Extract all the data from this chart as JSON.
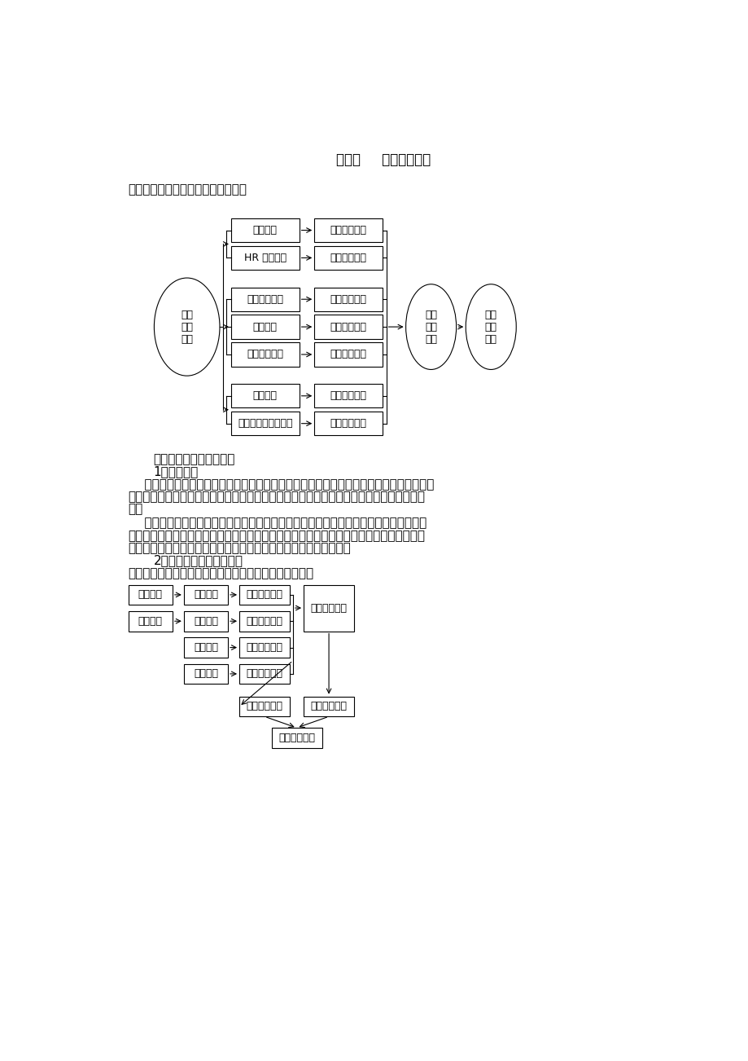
{
  "title": "第二章     培训需求调研",
  "section1_heading": "一、培训需求调研流程图，见下图：",
  "section2_heading": "二、培训需求的路径分析",
  "subsection1": "1、战略分析",
  "para1_line1": "    面对激烈的市场竞争，公司必须对产品市场做出迅速有效的反应，制定长远的发展规划。",
  "para1_line2": "为了保持公司的持续健康发展，培训工作必须在立足于现在的同时，要着眼于公司的未来发",
  "para1_line3": "展。",
  "para2_line1": "    根据公司的近期规划和长期发展规划，生产和业务的发展需要优秀的、有满足岗位需求",
  "para2_line2": "的、具有专业技能的各类管理人才和专业人才；除了从公司外部选聘引进人才外，更重要的",
  "para2_line3": "是对公司内部现有的人才有针对性地进行培训、提高、开发和使用。",
  "subsection2": "2、人力资源管理系统分析",
  "para3": "培训体系在人力资源管理系统中的地位和作用，见下图：",
  "col1_labels": [
    "战略分析",
    "HR 系统分析",
    "重大事件分析",
    "职位分析",
    "现存问题分析",
    "业绩分析",
    "职业发展前瞻性需求"
  ],
  "col2_labels": [
    "年度发展规划",
    "建立培训体系",
    "确定事件影响",
    "明确工作职责",
    "找出问题原因",
    "绩效结果反馈",
    "突出重点培养"
  ],
  "ellipse_left": "培训\n需求\n调研",
  "ellipse_mid": "确认\n培训\n需求",
  "ellipse_right": "建立\n培训\n目标",
  "colA_labels": [
    "组织架构",
    "工作分析"
  ],
  "colB_labels": [
    "招募甑选",
    "绩效考核",
    "薪酬管理",
    "企业文化"
  ],
  "colC_labels": [
    "职位匹配分析",
    "绩效差异分析",
    "增大产出投入",
    "转变行为模式"
  ],
  "box_d_label": "企业经营目标",
  "box_e_label": "确认培训需求",
  "box_f_label": "建立培训目标",
  "box_g_label": "培训效果评估"
}
